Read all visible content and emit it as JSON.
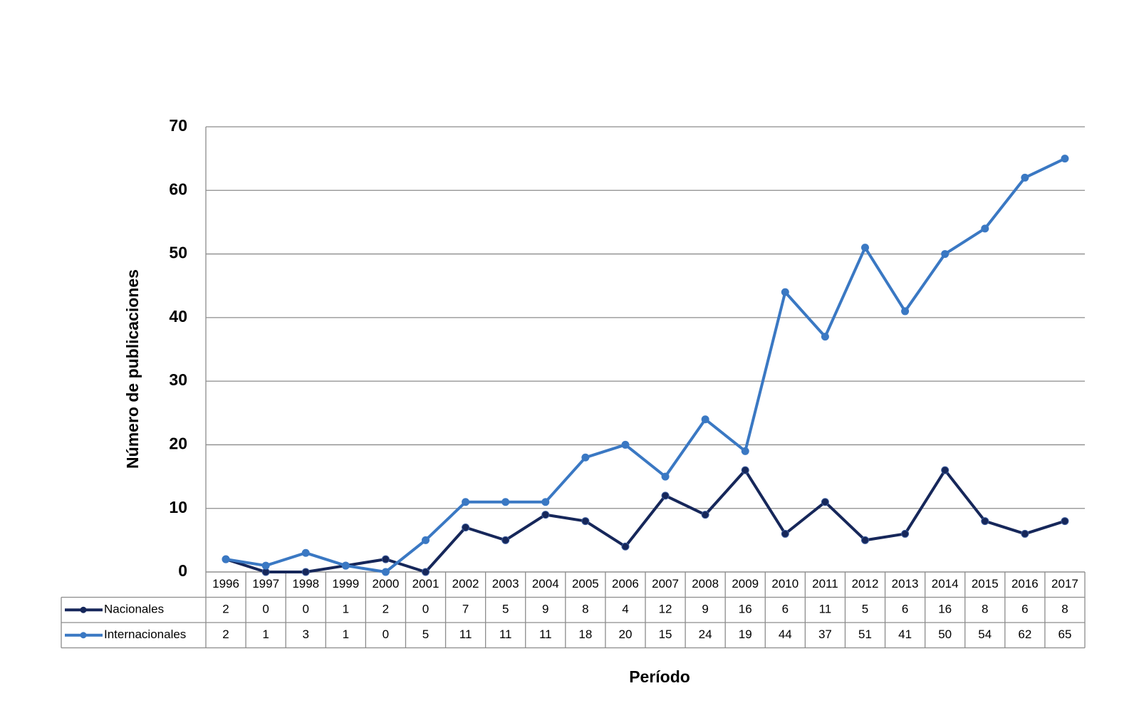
{
  "chart_data": {
    "type": "line",
    "x_label": "Período",
    "y_label": "Número de publicaciones",
    "categories": [
      "1996",
      "1997",
      "1998",
      "1999",
      "2000",
      "2001",
      "2002",
      "2003",
      "2004",
      "2005",
      "2006",
      "2007",
      "2008",
      "2009",
      "2010",
      "2011",
      "2012",
      "2013",
      "2014",
      "2015",
      "2016",
      "2017"
    ],
    "series": [
      {
        "name": "Nacionales",
        "color": "#16275a",
        "values": [
          2,
          0,
          0,
          1,
          2,
          0,
          7,
          5,
          9,
          8,
          4,
          12,
          9,
          16,
          6,
          11,
          5,
          6,
          16,
          8,
          6,
          8
        ]
      },
      {
        "name": "Internacionales",
        "color": "#3a78c3",
        "values": [
          2,
          1,
          3,
          1,
          0,
          5,
          11,
          11,
          11,
          18,
          20,
          15,
          24,
          19,
          44,
          37,
          51,
          41,
          50,
          54,
          62,
          65
        ]
      }
    ],
    "ylim": [
      0,
      70
    ],
    "yticks": [
      0,
      10,
      20,
      30,
      40,
      50,
      60,
      70
    ],
    "grid": true,
    "data_table": true
  }
}
